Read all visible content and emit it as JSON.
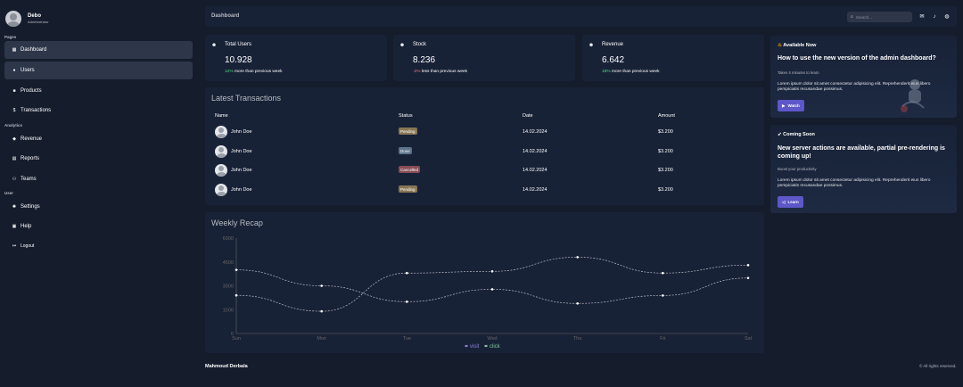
{
  "user": {
    "name": "Debo",
    "role": "Administrator"
  },
  "sidebar": {
    "sections": [
      {
        "title": "Pages",
        "items": [
          {
            "label": "Dashboard",
            "icon": "dashboard-icon",
            "active": true
          },
          {
            "label": "Users",
            "icon": "users-icon",
            "active": true
          },
          {
            "label": "Products",
            "icon": "products-icon",
            "active": false
          },
          {
            "label": "Transactions",
            "icon": "transactions-icon",
            "active": false
          }
        ]
      },
      {
        "title": "Analytics",
        "items": [
          {
            "label": "Revenue",
            "icon": "revenue-icon",
            "active": false
          },
          {
            "label": "Reports",
            "icon": "reports-icon",
            "active": false
          },
          {
            "label": "Teams",
            "icon": "teams-icon",
            "active": false
          }
        ]
      },
      {
        "title": "User",
        "items": [
          {
            "label": "Settings",
            "icon": "settings-icon",
            "active": false
          },
          {
            "label": "Help",
            "icon": "help-icon",
            "active": false
          }
        ]
      }
    ],
    "logout": "Logout"
  },
  "topbar": {
    "title": "Dashboard",
    "search_placeholder": "Search..."
  },
  "cards": [
    {
      "title": "Total Users",
      "value": "10.928",
      "change": "12%",
      "change_type": "positive",
      "detail": "more than previous week"
    },
    {
      "title": "Stock",
      "value": "8.236",
      "change": "-2%",
      "change_type": "negative",
      "detail": "less than previous week"
    },
    {
      "title": "Revenue",
      "value": "6.642",
      "change": "18%",
      "change_type": "positive",
      "detail": "more than previous week"
    }
  ],
  "transactions": {
    "heading": "Latest Transactions",
    "headers": {
      "name": "Name",
      "status": "Status",
      "date": "Date",
      "amount": "Amount"
    },
    "rows": [
      {
        "name": "John Doe",
        "status": "Pending",
        "date": "14.02.2024",
        "amount": "$3.200"
      },
      {
        "name": "John Doe",
        "status": "Done",
        "date": "14.02.2024",
        "amount": "$3.200"
      },
      {
        "name": "John Doe",
        "status": "Cancelled",
        "date": "14.02.2024",
        "amount": "$3.200"
      },
      {
        "name": "John Doe",
        "status": "Pending",
        "date": "14.02.2024",
        "amount": "$3.200"
      }
    ]
  },
  "status_colors": {
    "Pending": "#f7cb7380",
    "Done": "#afd6ee75",
    "Cancelled": "#f7737380"
  },
  "chart_data": {
    "type": "line",
    "title": "Weekly Recap",
    "categories": [
      "Sun",
      "Mon",
      "Tue",
      "Wed",
      "Thu",
      "Fri",
      "Sat"
    ],
    "yticks": [
      0,
      1500,
      3000,
      4500,
      6000
    ],
    "ylim": [
      0,
      6000
    ],
    "series": [
      {
        "name": "visit",
        "color": "#8884d8",
        "values": [
          4000,
          3000,
          2000,
          2780,
          1890,
          2390,
          3490
        ]
      },
      {
        "name": "click",
        "color": "#82ca9d",
        "values": [
          2400,
          1398,
          3800,
          3908,
          4800,
          3800,
          4300
        ]
      }
    ],
    "grid": false,
    "legend_position": "bottom"
  },
  "promos": [
    {
      "badge": "Available Now",
      "title": "How to use the new version of the admin dashboard?",
      "subtitle": "Takes 4 minutes to learn",
      "desc": "Lorem ipsum dolor sit amet consectetur adipisicing elit. Reprehenderit eius libero perspiciatis recusandae possimus.",
      "button": "Watch"
    },
    {
      "badge": "Coming Soon",
      "title": "New server actions are available, partial pre-rendering is coming up!",
      "subtitle": "Boost your productivity",
      "desc": "Lorem ipsum dolor sit amet consectetur adipisicing elit. Reprehenderit eius libero perspiciatis recusandae possimus.",
      "button": "Learn"
    }
  ],
  "footer": {
    "author": "Mahmoud Derbala",
    "copyright": "© All rights reserved."
  }
}
